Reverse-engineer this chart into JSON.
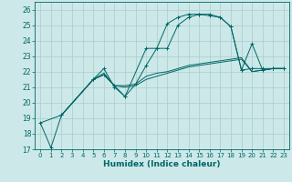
{
  "xlabel": "Humidex (Indice chaleur)",
  "bg_color": "#cce8e8",
  "grid_color": "#aacccc",
  "line_color": "#006666",
  "xlim": [
    -0.5,
    23.5
  ],
  "ylim": [
    17,
    26.5
  ],
  "yticks": [
    17,
    18,
    19,
    20,
    21,
    22,
    23,
    24,
    25,
    26
  ],
  "xticks": [
    0,
    1,
    2,
    3,
    4,
    5,
    6,
    7,
    8,
    9,
    10,
    11,
    12,
    13,
    14,
    15,
    16,
    17,
    18,
    19,
    20,
    21,
    22,
    23
  ],
  "series": [
    {
      "x": [
        0,
        1,
        2,
        5,
        6,
        7,
        8,
        10,
        11,
        12,
        13,
        14,
        15,
        16,
        17,
        18,
        19,
        20,
        21,
        22,
        23
      ],
      "y": [
        18.7,
        17.1,
        19.2,
        21.5,
        22.2,
        21.0,
        20.4,
        23.5,
        23.5,
        25.1,
        25.5,
        25.7,
        25.7,
        25.7,
        25.5,
        24.9,
        22.1,
        22.2,
        22.2,
        22.2,
        22.2
      ],
      "marker": "+"
    },
    {
      "x": [
        0,
        2,
        5,
        6,
        7,
        8,
        9,
        10,
        11,
        12,
        13,
        14,
        15,
        16,
        17,
        18,
        19,
        20,
        21,
        22,
        23
      ],
      "y": [
        18.7,
        19.2,
        21.5,
        21.8,
        21.1,
        21.0,
        21.1,
        21.5,
        21.7,
        21.9,
        22.1,
        22.3,
        22.4,
        22.5,
        22.6,
        22.7,
        22.8,
        22.0,
        22.1,
        22.2,
        22.2
      ],
      "marker": null
    },
    {
      "x": [
        2,
        5,
        6,
        7,
        8,
        9,
        10,
        11,
        12,
        13,
        14,
        15,
        16,
        17,
        18,
        19,
        20,
        21,
        22,
        23
      ],
      "y": [
        19.2,
        21.5,
        21.8,
        21.1,
        20.4,
        21.2,
        22.4,
        23.5,
        23.5,
        25.0,
        25.5,
        25.7,
        25.6,
        25.5,
        24.9,
        22.1,
        23.8,
        22.1,
        22.2,
        22.2
      ],
      "marker": "+"
    },
    {
      "x": [
        2,
        5,
        6,
        7,
        8,
        9,
        10,
        11,
        12,
        13,
        14,
        15,
        16,
        17,
        18,
        19,
        20,
        21,
        22,
        23
      ],
      "y": [
        19.2,
        21.5,
        21.9,
        21.1,
        21.1,
        21.2,
        21.7,
        21.9,
        22.0,
        22.2,
        22.4,
        22.5,
        22.6,
        22.7,
        22.8,
        22.9,
        22.0,
        22.1,
        22.2,
        22.2
      ],
      "marker": null
    }
  ]
}
